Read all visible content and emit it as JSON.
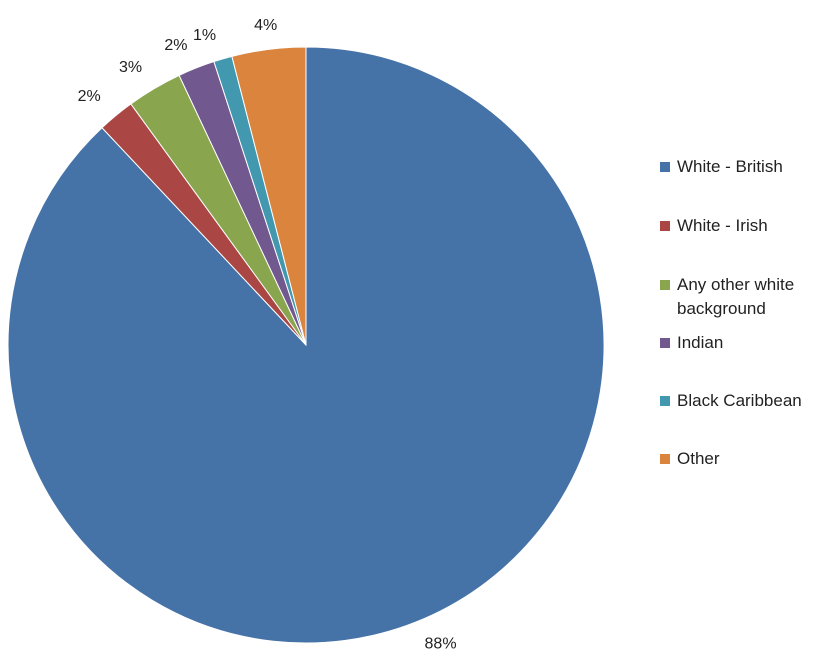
{
  "chart_data": {
    "type": "pie",
    "categories": [
      "White - British",
      "White - Irish",
      "Any other white background",
      "Indian",
      "Black Caribbean",
      "Other"
    ],
    "values": [
      88,
      2,
      3,
      2,
      1,
      4
    ],
    "value_labels": [
      "88%",
      "2%",
      "3%",
      "2%",
      "1%",
      "4%"
    ],
    "colors": [
      "#4572a7",
      "#aa4643",
      "#89a54e",
      "#71588f",
      "#4198af",
      "#db843d"
    ],
    "legend": "right"
  }
}
